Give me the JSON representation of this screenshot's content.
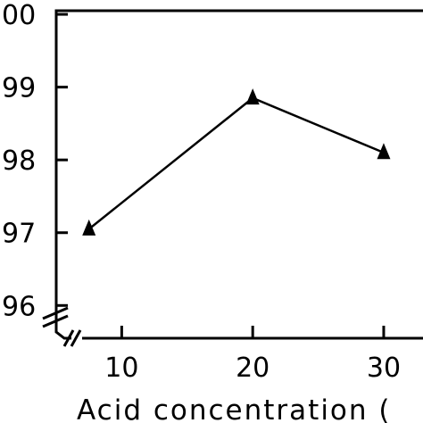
{
  "chart_data": {
    "type": "line",
    "xlabel": "Acid concentration (",
    "ylabel": "",
    "x_ticks": [
      "10",
      "20",
      "30"
    ],
    "y_ticks": [
      "00",
      "99",
      "98",
      "97",
      "96"
    ],
    "xlim": [
      5,
      33
    ],
    "ylim": [
      95.55,
      100.05
    ],
    "series": [
      {
        "x": [
          7.5,
          20,
          30
        ],
        "y": [
          97.05,
          98.85,
          98.1
        ],
        "marker": "triangle",
        "color": "#000000"
      }
    ],
    "grid": false,
    "axis_break": true
  }
}
